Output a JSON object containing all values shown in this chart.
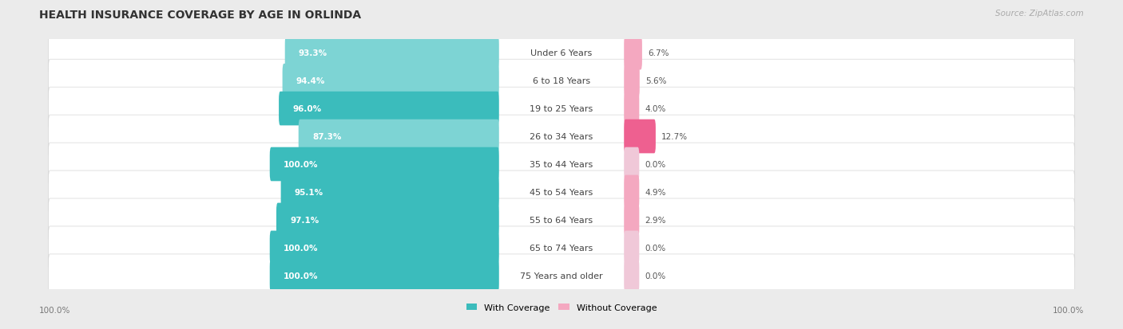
{
  "title": "HEALTH INSURANCE COVERAGE BY AGE IN ORLINDA",
  "source": "Source: ZipAtlas.com",
  "categories": [
    "Under 6 Years",
    "6 to 18 Years",
    "19 to 25 Years",
    "26 to 34 Years",
    "35 to 44 Years",
    "45 to 54 Years",
    "55 to 64 Years",
    "65 to 74 Years",
    "75 Years and older"
  ],
  "with_coverage": [
    93.3,
    94.4,
    96.0,
    87.3,
    100.0,
    95.1,
    97.1,
    100.0,
    100.0
  ],
  "without_coverage": [
    6.7,
    5.6,
    4.0,
    12.7,
    0.0,
    4.9,
    2.9,
    0.0,
    0.0
  ],
  "with_color_dark": "#3BBCBC",
  "with_color_light": "#7DD4D4",
  "without_color_dark": "#EE6090",
  "without_color_light": "#F4A8C0",
  "without_color_vlight": "#F0C8D8",
  "bg_color": "#EBEBEB",
  "row_bg": "#ffffff",
  "title_fontsize": 10,
  "label_fontsize": 8,
  "bar_label_fontsize": 7.5,
  "legend_fontsize": 8,
  "axis_label_fontsize": 7.5
}
